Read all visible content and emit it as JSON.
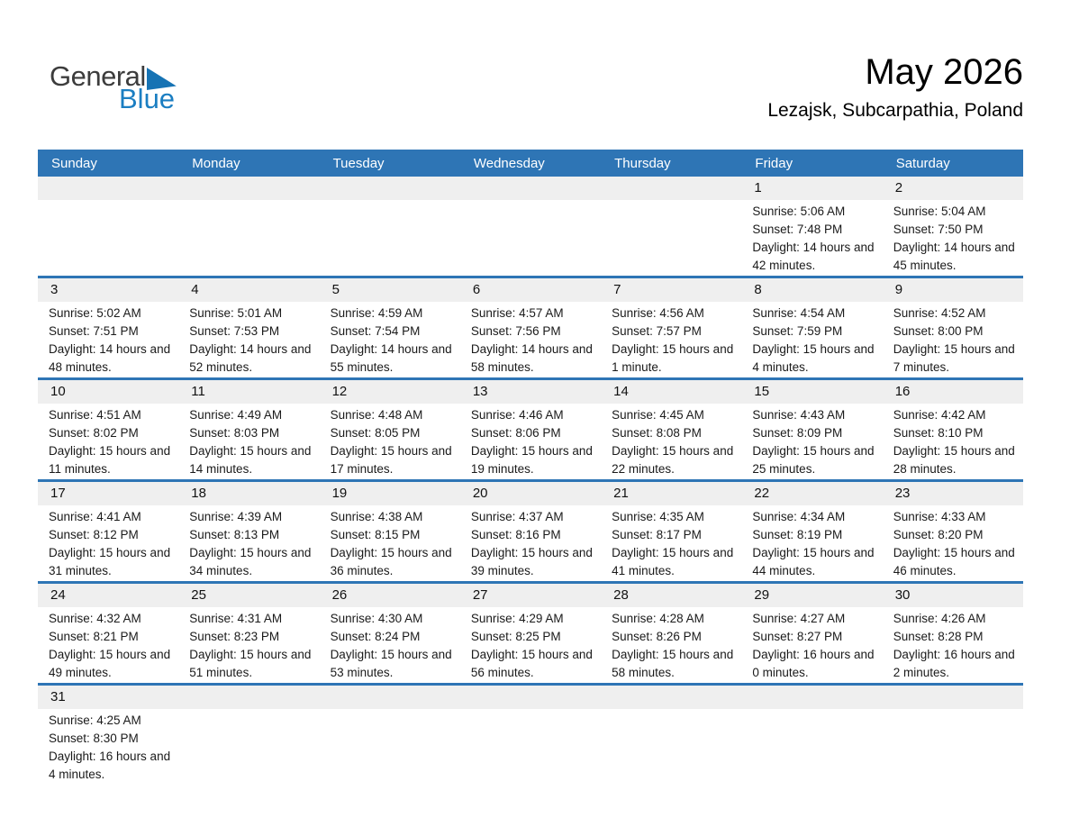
{
  "logo": {
    "word_top": "General",
    "word_bottom": "Blue"
  },
  "header": {
    "title": "May 2026",
    "subtitle": "Lezajsk, Subcarpathia, Poland"
  },
  "colors": {
    "header_bar_bg": "#2e75b5",
    "week_divider": "#2e75b5",
    "date_band_bg": "#efefef",
    "logo_blue": "#1b7ec2",
    "logo_triangle": "#1673b4",
    "header_text": "#ffffff"
  },
  "calendar": {
    "day_headers": [
      "Sunday",
      "Monday",
      "Tuesday",
      "Wednesday",
      "Thursday",
      "Friday",
      "Saturday"
    ],
    "weeks": [
      [
        null,
        null,
        null,
        null,
        null,
        {
          "date": "1",
          "sunrise": "Sunrise: 5:06 AM",
          "sunset": "Sunset: 7:48 PM",
          "daylight": "Daylight: 14 hours and 42 minutes."
        },
        {
          "date": "2",
          "sunrise": "Sunrise: 5:04 AM",
          "sunset": "Sunset: 7:50 PM",
          "daylight": "Daylight: 14 hours and 45 minutes."
        }
      ],
      [
        {
          "date": "3",
          "sunrise": "Sunrise: 5:02 AM",
          "sunset": "Sunset: 7:51 PM",
          "daylight": "Daylight: 14 hours and 48 minutes."
        },
        {
          "date": "4",
          "sunrise": "Sunrise: 5:01 AM",
          "sunset": "Sunset: 7:53 PM",
          "daylight": "Daylight: 14 hours and 52 minutes."
        },
        {
          "date": "5",
          "sunrise": "Sunrise: 4:59 AM",
          "sunset": "Sunset: 7:54 PM",
          "daylight": "Daylight: 14 hours and 55 minutes."
        },
        {
          "date": "6",
          "sunrise": "Sunrise: 4:57 AM",
          "sunset": "Sunset: 7:56 PM",
          "daylight": "Daylight: 14 hours and 58 minutes."
        },
        {
          "date": "7",
          "sunrise": "Sunrise: 4:56 AM",
          "sunset": "Sunset: 7:57 PM",
          "daylight": "Daylight: 15 hours and 1 minute."
        },
        {
          "date": "8",
          "sunrise": "Sunrise: 4:54 AM",
          "sunset": "Sunset: 7:59 PM",
          "daylight": "Daylight: 15 hours and 4 minutes."
        },
        {
          "date": "9",
          "sunrise": "Sunrise: 4:52 AM",
          "sunset": "Sunset: 8:00 PM",
          "daylight": "Daylight: 15 hours and 7 minutes."
        }
      ],
      [
        {
          "date": "10",
          "sunrise": "Sunrise: 4:51 AM",
          "sunset": "Sunset: 8:02 PM",
          "daylight": "Daylight: 15 hours and 11 minutes."
        },
        {
          "date": "11",
          "sunrise": "Sunrise: 4:49 AM",
          "sunset": "Sunset: 8:03 PM",
          "daylight": "Daylight: 15 hours and 14 minutes."
        },
        {
          "date": "12",
          "sunrise": "Sunrise: 4:48 AM",
          "sunset": "Sunset: 8:05 PM",
          "daylight": "Daylight: 15 hours and 17 minutes."
        },
        {
          "date": "13",
          "sunrise": "Sunrise: 4:46 AM",
          "sunset": "Sunset: 8:06 PM",
          "daylight": "Daylight: 15 hours and 19 minutes."
        },
        {
          "date": "14",
          "sunrise": "Sunrise: 4:45 AM",
          "sunset": "Sunset: 8:08 PM",
          "daylight": "Daylight: 15 hours and 22 minutes."
        },
        {
          "date": "15",
          "sunrise": "Sunrise: 4:43 AM",
          "sunset": "Sunset: 8:09 PM",
          "daylight": "Daylight: 15 hours and 25 minutes."
        },
        {
          "date": "16",
          "sunrise": "Sunrise: 4:42 AM",
          "sunset": "Sunset: 8:10 PM",
          "daylight": "Daylight: 15 hours and 28 minutes."
        }
      ],
      [
        {
          "date": "17",
          "sunrise": "Sunrise: 4:41 AM",
          "sunset": "Sunset: 8:12 PM",
          "daylight": "Daylight: 15 hours and 31 minutes."
        },
        {
          "date": "18",
          "sunrise": "Sunrise: 4:39 AM",
          "sunset": "Sunset: 8:13 PM",
          "daylight": "Daylight: 15 hours and 34 minutes."
        },
        {
          "date": "19",
          "sunrise": "Sunrise: 4:38 AM",
          "sunset": "Sunset: 8:15 PM",
          "daylight": "Daylight: 15 hours and 36 minutes."
        },
        {
          "date": "20",
          "sunrise": "Sunrise: 4:37 AM",
          "sunset": "Sunset: 8:16 PM",
          "daylight": "Daylight: 15 hours and 39 minutes."
        },
        {
          "date": "21",
          "sunrise": "Sunrise: 4:35 AM",
          "sunset": "Sunset: 8:17 PM",
          "daylight": "Daylight: 15 hours and 41 minutes."
        },
        {
          "date": "22",
          "sunrise": "Sunrise: 4:34 AM",
          "sunset": "Sunset: 8:19 PM",
          "daylight": "Daylight: 15 hours and 44 minutes."
        },
        {
          "date": "23",
          "sunrise": "Sunrise: 4:33 AM",
          "sunset": "Sunset: 8:20 PM",
          "daylight": "Daylight: 15 hours and 46 minutes."
        }
      ],
      [
        {
          "date": "24",
          "sunrise": "Sunrise: 4:32 AM",
          "sunset": "Sunset: 8:21 PM",
          "daylight": "Daylight: 15 hours and 49 minutes."
        },
        {
          "date": "25",
          "sunrise": "Sunrise: 4:31 AM",
          "sunset": "Sunset: 8:23 PM",
          "daylight": "Daylight: 15 hours and 51 minutes."
        },
        {
          "date": "26",
          "sunrise": "Sunrise: 4:30 AM",
          "sunset": "Sunset: 8:24 PM",
          "daylight": "Daylight: 15 hours and 53 minutes."
        },
        {
          "date": "27",
          "sunrise": "Sunrise: 4:29 AM",
          "sunset": "Sunset: 8:25 PM",
          "daylight": "Daylight: 15 hours and 56 minutes."
        },
        {
          "date": "28",
          "sunrise": "Sunrise: 4:28 AM",
          "sunset": "Sunset: 8:26 PM",
          "daylight": "Daylight: 15 hours and 58 minutes."
        },
        {
          "date": "29",
          "sunrise": "Sunrise: 4:27 AM",
          "sunset": "Sunset: 8:27 PM",
          "daylight": "Daylight: 16 hours and 0 minutes."
        },
        {
          "date": "30",
          "sunrise": "Sunrise: 4:26 AM",
          "sunset": "Sunset: 8:28 PM",
          "daylight": "Daylight: 16 hours and 2 minutes."
        }
      ],
      [
        {
          "date": "31",
          "sunrise": "Sunrise: 4:25 AM",
          "sunset": "Sunset: 8:30 PM",
          "daylight": "Daylight: 16 hours and 4 minutes."
        },
        null,
        null,
        null,
        null,
        null,
        null
      ]
    ]
  }
}
